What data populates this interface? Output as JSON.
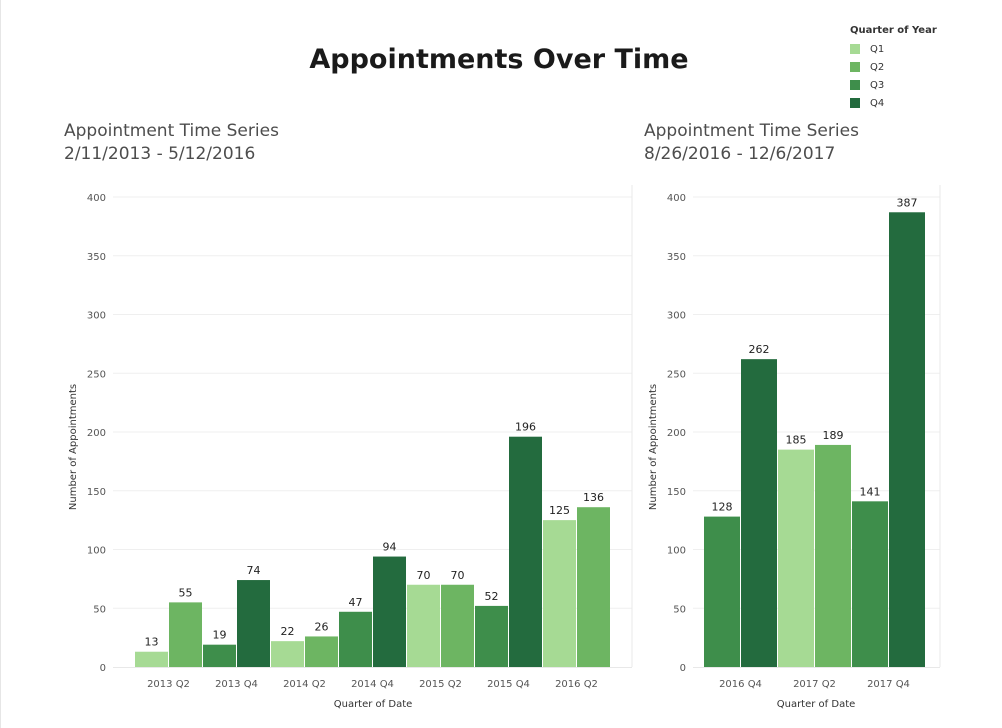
{
  "title": "Appointments Over Time",
  "legend": {
    "title": "Quarter of Year",
    "items": [
      {
        "label": "Q1",
        "color": "#a6da94"
      },
      {
        "label": "Q2",
        "color": "#6db562"
      },
      {
        "label": "Q3",
        "color": "#3e8e4b"
      },
      {
        "label": "Q4",
        "color": "#236b3e"
      }
    ]
  },
  "chart_data": [
    {
      "type": "bar",
      "title": "Appointment Time Series",
      "subtitle": "2/11/2013 - 5/12/2016",
      "xlabel": "Quarter of Date",
      "ylabel": "Number of Appointments",
      "ylim": [
        0,
        400
      ],
      "yticks": [
        0,
        50,
        100,
        150,
        200,
        250,
        300,
        350,
        400
      ],
      "categories": [
        "2013 Q1",
        "2013 Q2",
        "2013 Q3",
        "2013 Q4",
        "2014 Q1",
        "2014 Q2",
        "2014 Q3",
        "2014 Q4",
        "2015 Q1",
        "2015 Q2",
        "2015 Q3",
        "2015 Q4",
        "2016 Q1",
        "2016 Q2"
      ],
      "quarter": [
        "Q1",
        "Q2",
        "Q3",
        "Q4",
        "Q1",
        "Q2",
        "Q3",
        "Q4",
        "Q1",
        "Q2",
        "Q3",
        "Q4",
        "Q1",
        "Q2"
      ],
      "values": [
        13,
        55,
        19,
        74,
        22,
        26,
        47,
        94,
        70,
        70,
        52,
        196,
        125,
        136
      ],
      "tick_labels": [
        "2013 Q2",
        "2013 Q4",
        "2014 Q2",
        "2014 Q4",
        "2015 Q2",
        "2015 Q4",
        "2016 Q2"
      ],
      "grid": true
    },
    {
      "type": "bar",
      "title": "Appointment Time Series",
      "subtitle": "8/26/2016 - 12/6/2017",
      "xlabel": "Quarter of Date",
      "ylabel": "Number of Appointments",
      "ylim": [
        0,
        400
      ],
      "yticks": [
        0,
        50,
        100,
        150,
        200,
        250,
        300,
        350,
        400
      ],
      "categories": [
        "2016 Q3",
        "2016 Q4",
        "2017 Q1",
        "2017 Q2",
        "2017 Q3",
        "2017 Q4"
      ],
      "quarter": [
        "Q3",
        "Q4",
        "Q1",
        "Q2",
        "Q3",
        "Q4"
      ],
      "values": [
        128,
        262,
        185,
        189,
        141,
        387
      ],
      "tick_labels": [
        "2016 Q4",
        "2017 Q2",
        "2017 Q4"
      ],
      "grid": true
    }
  ]
}
